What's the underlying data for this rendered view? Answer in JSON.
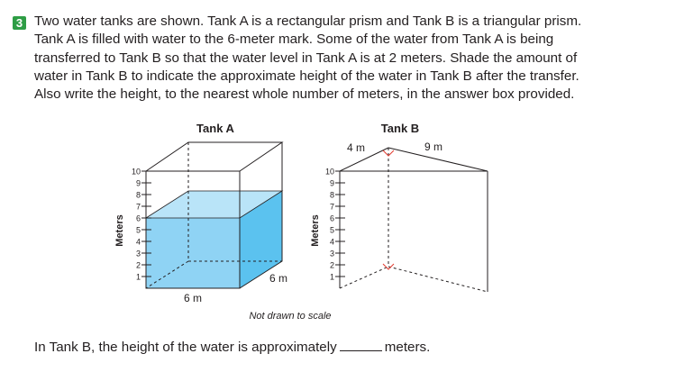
{
  "problem": {
    "number": "3",
    "lines": [
      "Two water tanks are shown. Tank A is a rectangular prism and Tank B is a triangular prism.",
      "Tank A is filled with water to the 6-meter mark. Some of the water from Tank A is being",
      "transferred to Tank B so that the water level in Tank A is at 2 meters. Shade the amount of",
      "water in Tank B to indicate the approximate height of the water in Tank B after the transfer.",
      "Also write the height, to the nearest whole number of meters, in the answer box provided."
    ]
  },
  "figure": {
    "tank_a": {
      "title": "Tank A",
      "axis_label": "Meters",
      "scale_ticks": [
        "1",
        "2",
        "3",
        "4",
        "5",
        "6",
        "7",
        "8",
        "9",
        "10"
      ],
      "width_label": "6 m",
      "depth_label": "6 m",
      "water_level_m": 6
    },
    "tank_b": {
      "title": "Tank B",
      "axis_label": "Meters",
      "scale_ticks": [
        "1",
        "2",
        "3",
        "4",
        "5",
        "6",
        "7",
        "8",
        "9",
        "10"
      ],
      "base_label": "4 m",
      "length_label": "9 m"
    },
    "note": "Not drawn to scale",
    "colors": {
      "water_front": "#8fd3f4",
      "water_side": "#5bc2ef",
      "water_top": "#b9e4f8",
      "edge": "#231f20",
      "right_angle": "#e03c31"
    }
  },
  "answer": {
    "prefix": "In Tank B, the height of the water is approximately",
    "suffix": "meters."
  }
}
